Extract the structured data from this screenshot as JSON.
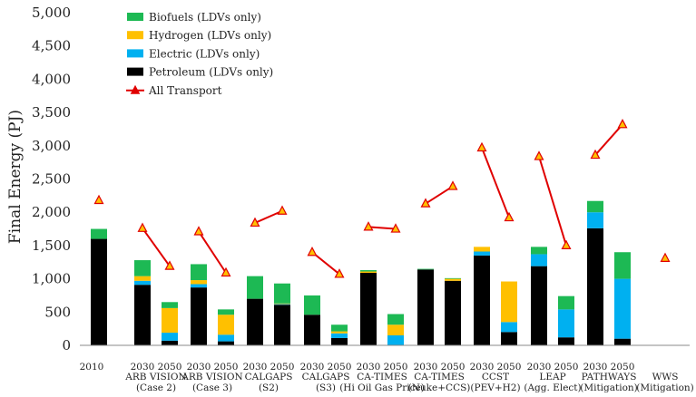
{
  "colors": {
    "biofuels": "#1DB954",
    "hydrogen": "#FFC000",
    "electric": "#00B0F0",
    "petroleum": "#000000",
    "transport_line": "#E00000",
    "transport_marker_fill": "#FFC000"
  },
  "chart_data": {
    "type": "bar",
    "stacked": true,
    "ylabel": "Final Energy (PJ)",
    "ylim": [
      0,
      5000
    ],
    "yticks": [
      "0",
      "500",
      "1,000",
      "1,500",
      "2,000",
      "2,500",
      "3,000",
      "3,500",
      "4,000",
      "4,500",
      "5,000"
    ],
    "ytick_values": [
      0,
      500,
      1000,
      1500,
      2000,
      2500,
      3000,
      3500,
      4000,
      4500,
      5000
    ],
    "grid": false,
    "legend_position": "top-left",
    "legend": [
      {
        "key": "biofuels",
        "label": "Biofuels (LDVs only)",
        "marker": "square"
      },
      {
        "key": "hydrogen",
        "label": "Hydrogen (LDVs only)",
        "marker": "square"
      },
      {
        "key": "electric",
        "label": "Electric (LDVs only)",
        "marker": "square"
      },
      {
        "key": "petroleum",
        "label": "Petroleum (LDVs only)",
        "marker": "square"
      },
      {
        "key": "transport",
        "label": "All Transport",
        "marker": "line-triangle"
      }
    ],
    "groups": [
      {
        "years": "2010",
        "line1": "",
        "line2": ""
      },
      {
        "years": "2030  2050",
        "line1": "ARB VISION",
        "line2": "(Case 2)"
      },
      {
        "years": "2030  2050",
        "line1": "ARB VISION",
        "line2": "(Case  3)"
      },
      {
        "years": "2030  2050",
        "line1": "CALGAPS",
        "line2": "(S2)"
      },
      {
        "years": "2030  2050",
        "line1": "CALGAPS",
        "line2": "(S3)"
      },
      {
        "years": "2030  2050",
        "line1": "CA-TIMES",
        "line2": "(Hi Oil Gas  Price)"
      },
      {
        "years": "2030  2050",
        "line1": "CA-TIMES",
        "line2": "(Nuke+CCS)"
      },
      {
        "years": "2030  2050",
        "line1": "CCST",
        "line2": "(PEV+H2)"
      },
      {
        "years": "2030  2050",
        "line1": "LEAP",
        "line2": "(Agg. Elect)"
      },
      {
        "years": "2030  2050",
        "line1": "PATHWAYS",
        "line2": "(Mitigation)"
      },
      {
        "years": "",
        "line1": "WWS",
        "line2": "(Mitigation)"
      }
    ],
    "bars": [
      {
        "group": 0,
        "year": "2010",
        "petroleum": 1600,
        "electric": 0,
        "hydrogen": 0,
        "biofuels": 150
      },
      {
        "group": 1,
        "year": "2030",
        "petroleum": 910,
        "electric": 60,
        "hydrogen": 70,
        "biofuels": 240
      },
      {
        "group": 1,
        "year": "2050",
        "petroleum": 70,
        "electric": 120,
        "hydrogen": 370,
        "biofuels": 90
      },
      {
        "group": 2,
        "year": "2030",
        "petroleum": 870,
        "electric": 50,
        "hydrogen": 60,
        "biofuels": 240
      },
      {
        "group": 2,
        "year": "2050",
        "petroleum": 60,
        "electric": 100,
        "hydrogen": 300,
        "biofuels": 80
      },
      {
        "group": 3,
        "year": "2030",
        "petroleum": 700,
        "electric": 0,
        "hydrogen": 0,
        "biofuels": 340
      },
      {
        "group": 3,
        "year": "2050",
        "petroleum": 610,
        "electric": 10,
        "hydrogen": 10,
        "biofuels": 300
      },
      {
        "group": 4,
        "year": "2030",
        "petroleum": 460,
        "electric": 0,
        "hydrogen": 0,
        "biofuels": 290
      },
      {
        "group": 4,
        "year": "2050",
        "petroleum": 110,
        "electric": 70,
        "hydrogen": 30,
        "biofuels": 100
      },
      {
        "group": 5,
        "year": "2030",
        "petroleum": 1090,
        "electric": 0,
        "hydrogen": 20,
        "biofuels": 20
      },
      {
        "group": 5,
        "year": "2050",
        "petroleum": 0,
        "electric": 150,
        "hydrogen": 160,
        "biofuels": 160
      },
      {
        "group": 6,
        "year": "2030",
        "petroleum": 1140,
        "electric": 0,
        "hydrogen": 0,
        "biofuels": 10
      },
      {
        "group": 6,
        "year": "2050",
        "petroleum": 970,
        "electric": 0,
        "hydrogen": 30,
        "biofuels": 10
      },
      {
        "group": 7,
        "year": "2030",
        "petroleum": 1350,
        "electric": 60,
        "hydrogen": 70,
        "biofuels": 0
      },
      {
        "group": 7,
        "year": "2050",
        "petroleum": 200,
        "electric": 150,
        "hydrogen": 610,
        "biofuels": 0
      },
      {
        "group": 8,
        "year": "2030",
        "petroleum": 1190,
        "electric": 180,
        "hydrogen": 0,
        "biofuels": 110
      },
      {
        "group": 8,
        "year": "2050",
        "petroleum": 120,
        "electric": 420,
        "hydrogen": 0,
        "biofuels": 200
      },
      {
        "group": 9,
        "year": "2030",
        "petroleum": 1760,
        "electric": 240,
        "hydrogen": 0,
        "biofuels": 170
      },
      {
        "group": 9,
        "year": "2050",
        "petroleum": 100,
        "electric": 900,
        "hydrogen": 0,
        "biofuels": 400
      }
    ],
    "all_transport": [
      {
        "group": 0,
        "points": [
          {
            "slot": 0,
            "value": 2180
          }
        ]
      },
      {
        "group": 1,
        "points": [
          {
            "slot": 0,
            "value": 1760
          },
          {
            "slot": 1,
            "value": 1190
          }
        ]
      },
      {
        "group": 2,
        "points": [
          {
            "slot": 0,
            "value": 1710
          },
          {
            "slot": 1,
            "value": 1090
          }
        ]
      },
      {
        "group": 3,
        "points": [
          {
            "slot": 0,
            "value": 1840
          },
          {
            "slot": 1,
            "value": 2020
          }
        ]
      },
      {
        "group": 4,
        "points": [
          {
            "slot": 0,
            "value": 1400
          },
          {
            "slot": 1,
            "value": 1070
          }
        ]
      },
      {
        "group": 5,
        "points": [
          {
            "slot": 0,
            "value": 1780
          },
          {
            "slot": 1,
            "value": 1750
          }
        ]
      },
      {
        "group": 6,
        "points": [
          {
            "slot": 0,
            "value": 2130
          },
          {
            "slot": 1,
            "value": 2390
          }
        ]
      },
      {
        "group": 7,
        "points": [
          {
            "slot": 0,
            "value": 2970
          },
          {
            "slot": 1,
            "value": 1920
          }
        ]
      },
      {
        "group": 8,
        "points": [
          {
            "slot": 0,
            "value": 2840
          },
          {
            "slot": 1,
            "value": 1500
          }
        ]
      },
      {
        "group": 9,
        "points": [
          {
            "slot": 0,
            "value": 2860
          },
          {
            "slot": 1,
            "value": 3320
          }
        ]
      },
      {
        "group": 10,
        "points": [
          {
            "slot": 0,
            "value": 1310
          }
        ]
      }
    ]
  }
}
